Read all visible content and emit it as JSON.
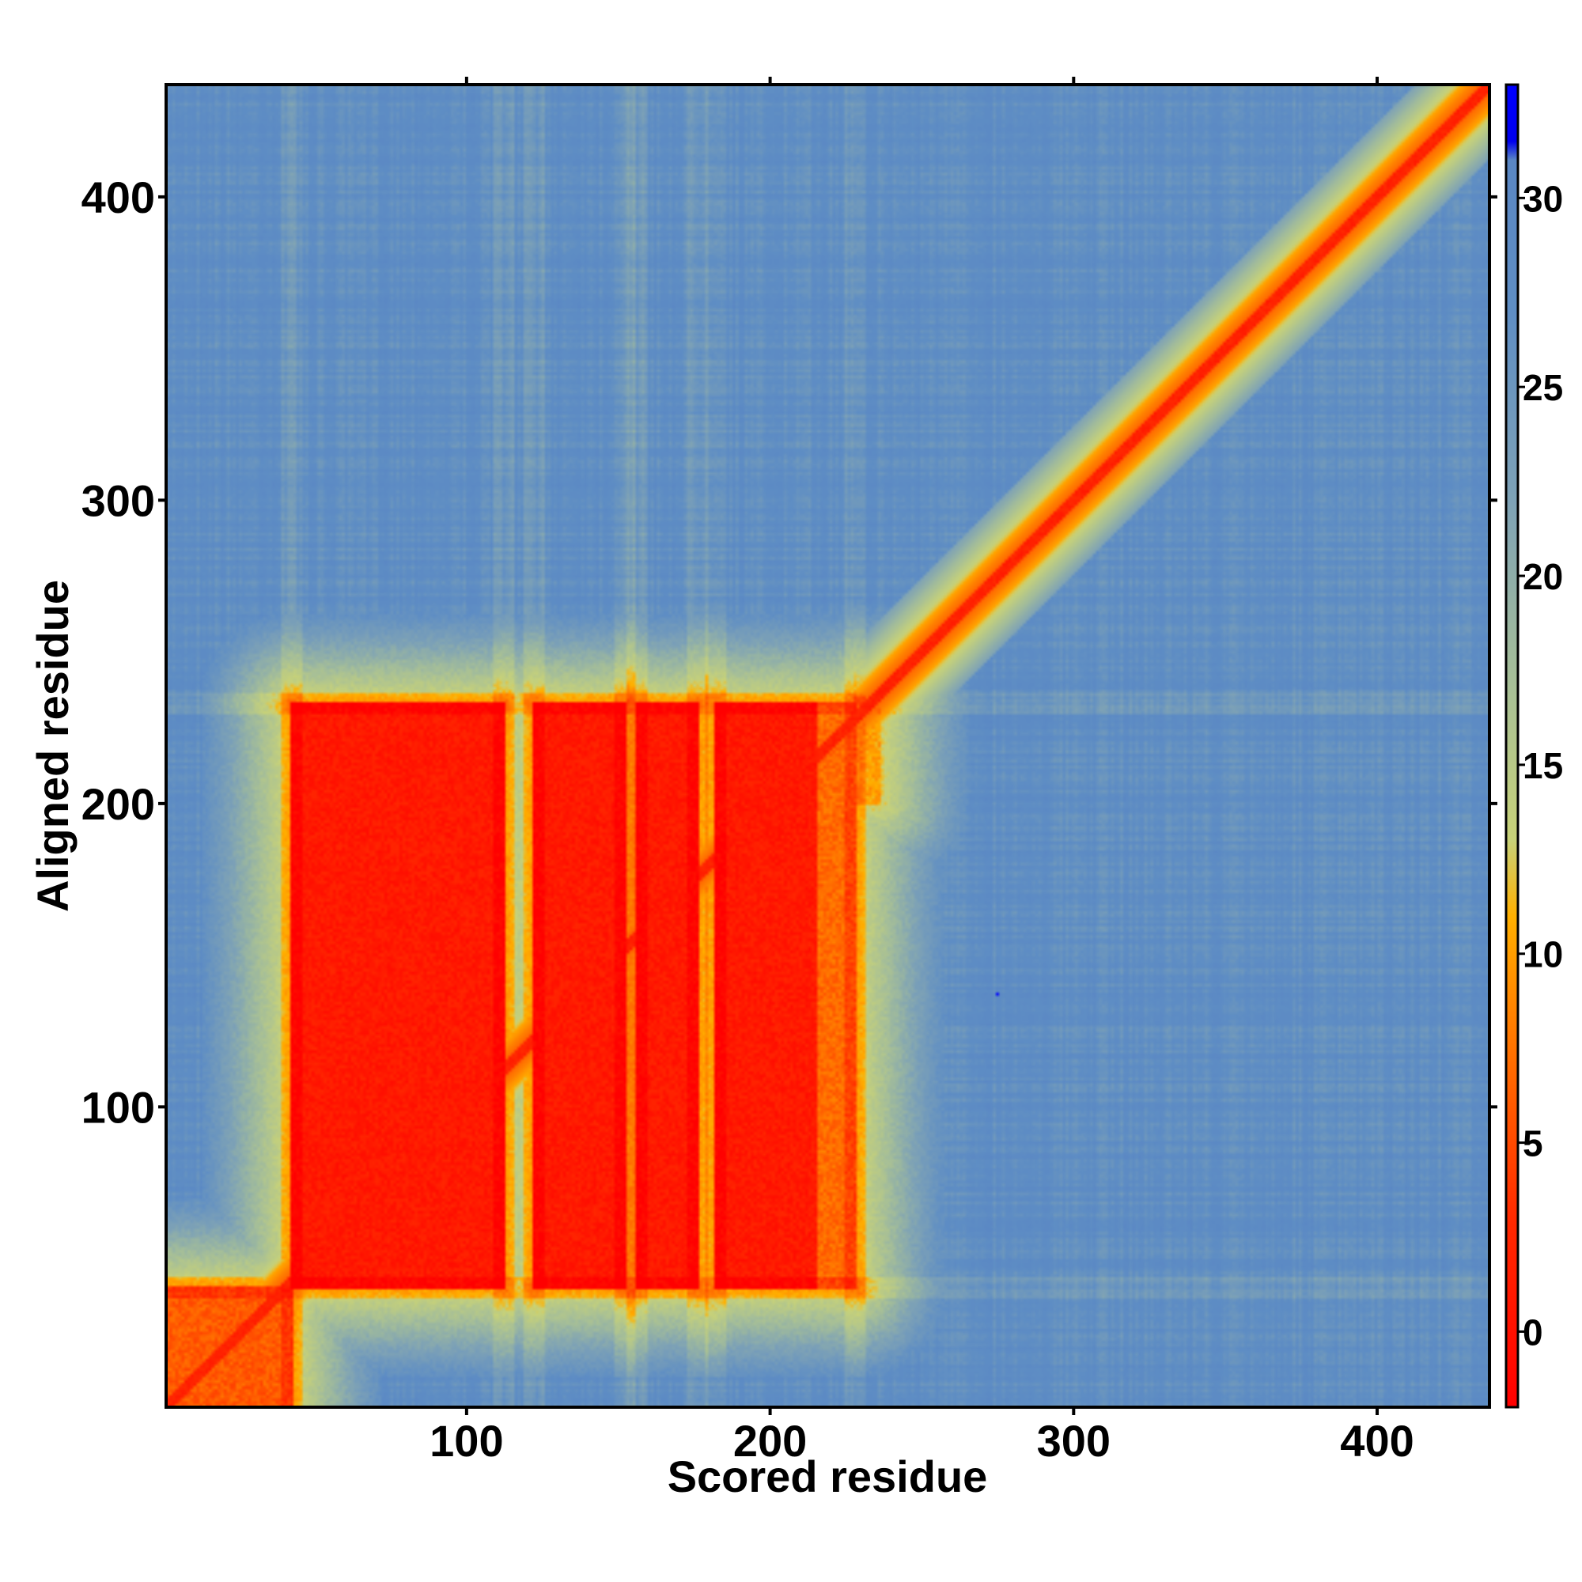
{
  "chart_data": {
    "type": "heatmap",
    "title": "",
    "xlabel": "Scored residue",
    "ylabel": "Aligned residue",
    "xlim": [
      1,
      437
    ],
    "ylim": [
      1,
      437
    ],
    "xticks": [
      100,
      200,
      300,
      400
    ],
    "yticks": [
      100,
      200,
      300,
      400
    ],
    "colorbar": {
      "range": [
        -2,
        33
      ],
      "ticks": [
        0,
        5,
        10,
        15,
        20,
        25,
        30
      ],
      "stops": [
        {
          "value": -2,
          "color": "#ff0000"
        },
        {
          "value": 3,
          "color": "#ff2a00"
        },
        {
          "value": 6,
          "color": "#ff5a00"
        },
        {
          "value": 9,
          "color": "#ff8c00"
        },
        {
          "value": 11,
          "color": "#ffb000"
        },
        {
          "value": 13,
          "color": "#c8d278"
        },
        {
          "value": 17,
          "color": "#a8c096"
        },
        {
          "value": 22,
          "color": "#7ea2b6"
        },
        {
          "value": 27,
          "color": "#5f8ec4"
        },
        {
          "value": 31,
          "color": "#5a87c4"
        },
        {
          "value": 31.5,
          "color": "#0000ee"
        },
        {
          "value": 33,
          "color": "#0000ff"
        }
      ]
    },
    "background_value": 27,
    "diagonal": {
      "from": 1,
      "to": 437,
      "value": 1
    },
    "blocks": [
      {
        "x": [
          42,
          112
        ],
        "y": [
          40,
          233
        ],
        "value": 1
      },
      {
        "x": [
          122,
          152
        ],
        "y": [
          40,
          233
        ],
        "value": 1
      },
      {
        "x": [
          156,
          176
        ],
        "y": [
          40,
          233
        ],
        "value": 1
      },
      {
        "x": [
          182,
          215
        ],
        "y": [
          40,
          233
        ],
        "value": 1
      },
      {
        "x": [
          215,
          228
        ],
        "y": [
          40,
          233
        ],
        "value": 7
      },
      {
        "x": [
          1,
          42
        ],
        "y": [
          1,
          40
        ],
        "value": 6
      },
      {
        "x": [
          228,
          236
        ],
        "y": [
          200,
          235
        ],
        "value": 10
      }
    ],
    "band_edges": {
      "x": [
        42,
        112,
        122,
        152,
        156,
        176,
        182,
        228
      ],
      "y": [
        40,
        233
      ]
    },
    "outlier": {
      "x": 275,
      "y": 137,
      "value": 33
    }
  }
}
